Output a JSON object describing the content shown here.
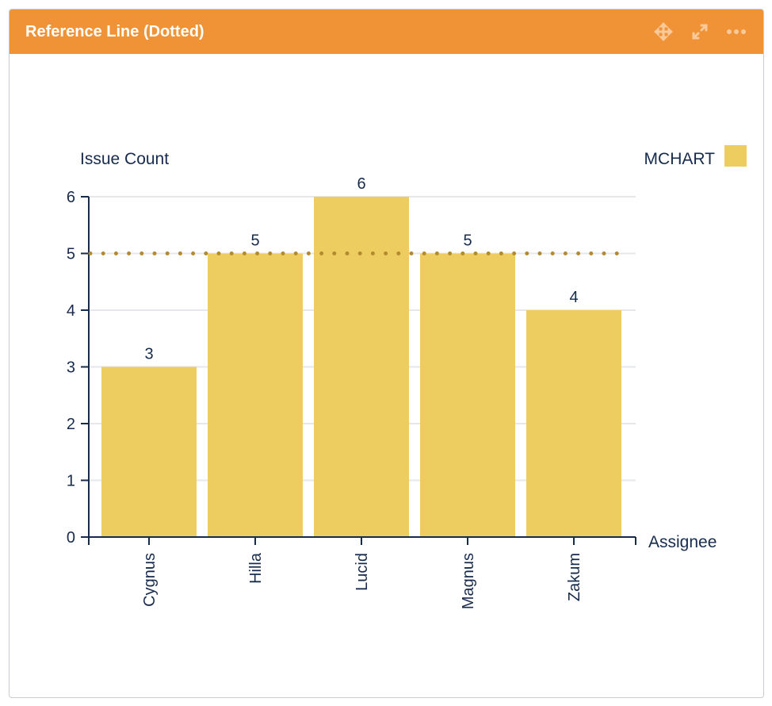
{
  "header": {
    "title": "Reference Line (Dotted)",
    "icons": [
      "move-icon",
      "expand-icon",
      "more-icon"
    ]
  },
  "chart_data": {
    "type": "bar",
    "categories": [
      "Cygnus",
      "Hilla",
      "Lucid",
      "Magnus",
      "Zakum"
    ],
    "series": [
      {
        "name": "MCHART",
        "values": [
          3,
          5,
          6,
          5,
          4
        ],
        "color": "#edcd60"
      }
    ],
    "xlabel": "Assignee",
    "ylabel": "Issue Count",
    "ylim": [
      0,
      6
    ],
    "yticks": [
      0,
      1,
      2,
      3,
      4,
      5,
      6
    ],
    "grid": true,
    "legend": "top-right",
    "reference_line": {
      "value": 5,
      "style": "dotted",
      "color": "#b38b2e"
    }
  }
}
